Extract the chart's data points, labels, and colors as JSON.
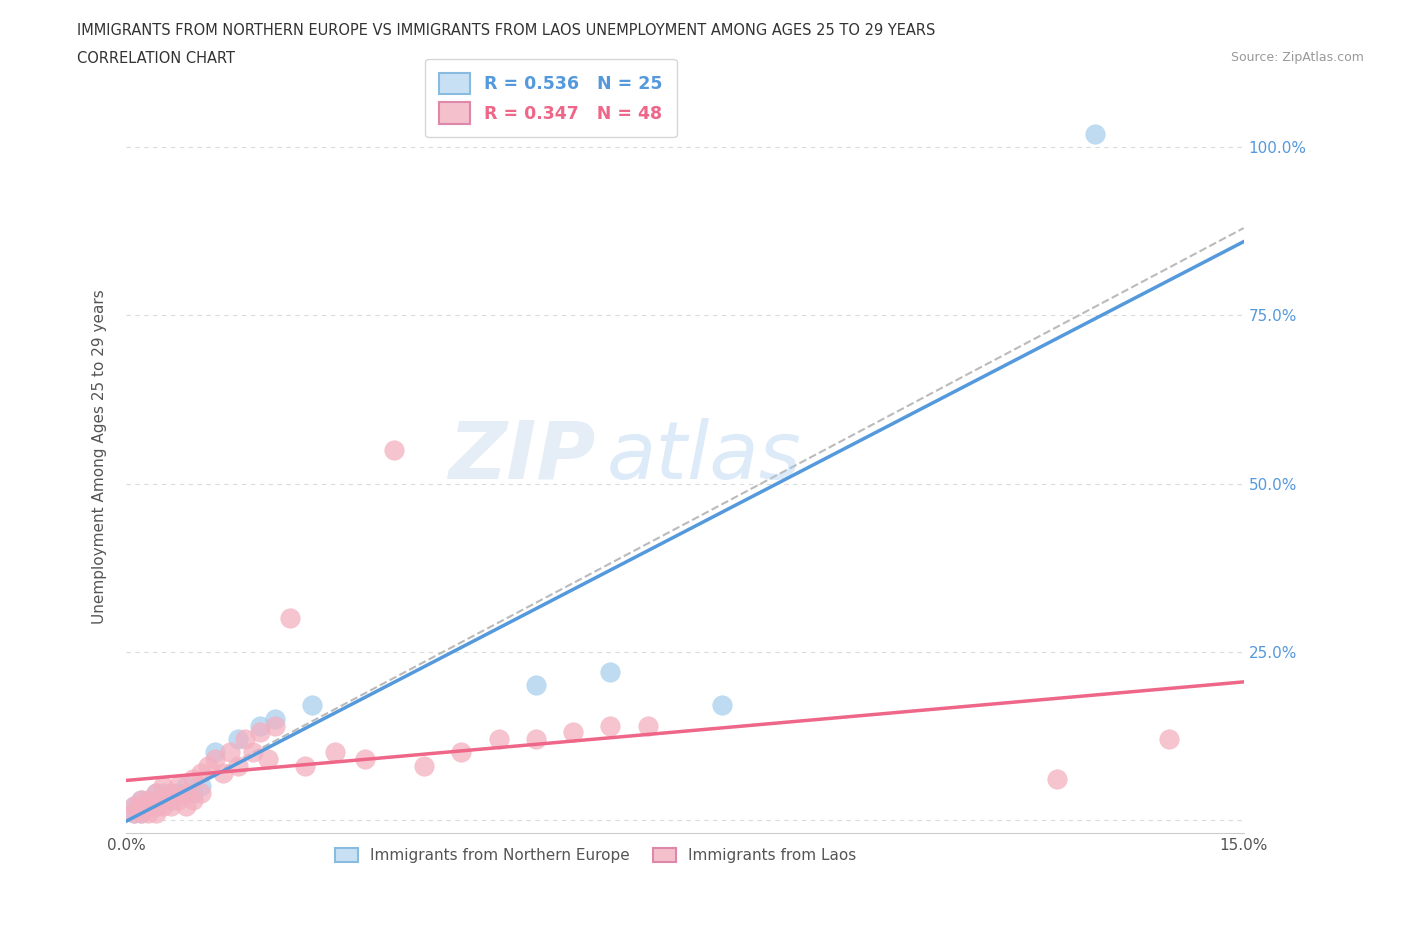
{
  "title_line1": "IMMIGRANTS FROM NORTHERN EUROPE VS IMMIGRANTS FROM LAOS UNEMPLOYMENT AMONG AGES 25 TO 29 YEARS",
  "title_line2": "CORRELATION CHART",
  "source": "Source: ZipAtlas.com",
  "ylabel": "Unemployment Among Ages 25 to 29 years",
  "xlim": [
    0.0,
    0.15
  ],
  "ylim": [
    -0.02,
    1.1
  ],
  "right_yticks": [
    0.25,
    0.5,
    0.75,
    1.0
  ],
  "right_yticklabels": [
    "25.0%",
    "50.0%",
    "75.0%",
    "100.0%"
  ],
  "xticks": [
    0.0,
    0.03,
    0.06,
    0.09,
    0.12,
    0.15
  ],
  "xticklabels": [
    "0.0%",
    "",
    "",
    "",
    "",
    "15.0%"
  ],
  "blue_R": 0.536,
  "blue_N": 25,
  "pink_R": 0.347,
  "pink_N": 48,
  "blue_color": "#A8D0EE",
  "pink_color": "#F4B0C0",
  "blue_line_color": "#5599DD",
  "pink_line_color": "#EE6688",
  "gray_dash_color": "#BBBBBB",
  "blue_scatter_x": [
    0.001,
    0.001,
    0.002,
    0.002,
    0.002,
    0.003,
    0.003,
    0.004,
    0.004,
    0.005,
    0.005,
    0.006,
    0.007,
    0.008,
    0.009,
    0.01,
    0.012,
    0.015,
    0.018,
    0.02,
    0.025,
    0.055,
    0.065,
    0.08,
    0.13
  ],
  "blue_scatter_y": [
    0.01,
    0.02,
    0.01,
    0.02,
    0.03,
    0.02,
    0.03,
    0.02,
    0.04,
    0.03,
    0.04,
    0.03,
    0.04,
    0.05,
    0.04,
    0.05,
    0.1,
    0.12,
    0.14,
    0.15,
    0.17,
    0.2,
    0.22,
    0.17,
    1.02
  ],
  "pink_scatter_x": [
    0.001,
    0.001,
    0.002,
    0.002,
    0.002,
    0.003,
    0.003,
    0.003,
    0.004,
    0.004,
    0.004,
    0.005,
    0.005,
    0.005,
    0.006,
    0.006,
    0.007,
    0.007,
    0.008,
    0.008,
    0.009,
    0.009,
    0.01,
    0.01,
    0.011,
    0.012,
    0.013,
    0.014,
    0.015,
    0.016,
    0.017,
    0.018,
    0.019,
    0.02,
    0.022,
    0.024,
    0.028,
    0.032,
    0.036,
    0.04,
    0.045,
    0.05,
    0.055,
    0.06,
    0.065,
    0.07,
    0.125,
    0.14
  ],
  "pink_scatter_y": [
    0.01,
    0.02,
    0.01,
    0.02,
    0.03,
    0.01,
    0.02,
    0.03,
    0.01,
    0.02,
    0.04,
    0.02,
    0.03,
    0.05,
    0.02,
    0.04,
    0.03,
    0.05,
    0.02,
    0.04,
    0.03,
    0.06,
    0.04,
    0.07,
    0.08,
    0.09,
    0.07,
    0.1,
    0.08,
    0.12,
    0.1,
    0.13,
    0.09,
    0.14,
    0.3,
    0.08,
    0.1,
    0.09,
    0.55,
    0.08,
    0.1,
    0.12,
    0.12,
    0.13,
    0.14,
    0.14,
    0.06,
    0.12
  ],
  "watermark_zip": "ZIP",
  "watermark_atlas": "atlas",
  "gridline_color": "#CCCCCC",
  "background_color": "#FFFFFF"
}
